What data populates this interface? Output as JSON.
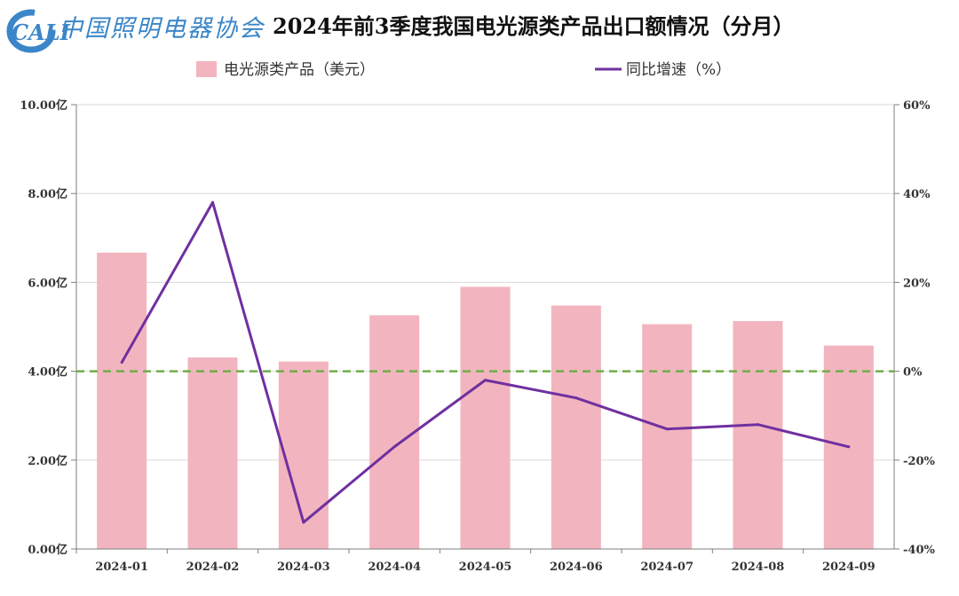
{
  "header": {
    "logo_text": "CALI",
    "org_name": "中国照明电器协会",
    "title": "2024年前3季度我国电光源类产品出口额情况（分月）"
  },
  "colors": {
    "bar": "#f2b5bf",
    "line": "#7030a0",
    "zero_line": "#70ad47",
    "axis": "#7f7f7f",
    "grid": "#d9d9d9",
    "logo": "#3a86c8"
  },
  "chart_data": {
    "type": "bar",
    "title": "2024年前3季度我国电光源类产品出口额情况（分月）",
    "categories": [
      "2024-01",
      "2024-02",
      "2024-03",
      "2024-04",
      "2024-05",
      "2024-06",
      "2024-07",
      "2024-08",
      "2024-09"
    ],
    "series": [
      {
        "name": "电光源类产品（美元）",
        "type": "bar",
        "axis": "left",
        "values": [
          6.67,
          4.31,
          4.22,
          5.26,
          5.9,
          5.48,
          5.06,
          5.13,
          4.58
        ]
      },
      {
        "name": "同比增速（%）",
        "type": "line",
        "axis": "right",
        "values": [
          2,
          38,
          -34,
          -17,
          -2,
          -6,
          -13,
          -12,
          -17
        ]
      }
    ],
    "y_left": {
      "ylim": [
        0,
        10
      ],
      "ticks": [
        0,
        2,
        4,
        6,
        8,
        10
      ],
      "tick_labels": [
        "0.00亿",
        "2.00亿",
        "4.00亿",
        "6.00亿",
        "8.00亿",
        "10.00亿"
      ]
    },
    "y_right": {
      "ylim": [
        -40,
        60
      ],
      "ticks": [
        -40,
        -20,
        0,
        20,
        40,
        60
      ],
      "tick_labels": [
        "-40%",
        "-20%",
        "0%",
        "20%",
        "40%",
        "60%"
      ]
    },
    "reference_line": {
      "axis": "right",
      "value": 0,
      "style": "dashed"
    },
    "grid": true,
    "legend_position": "top"
  }
}
